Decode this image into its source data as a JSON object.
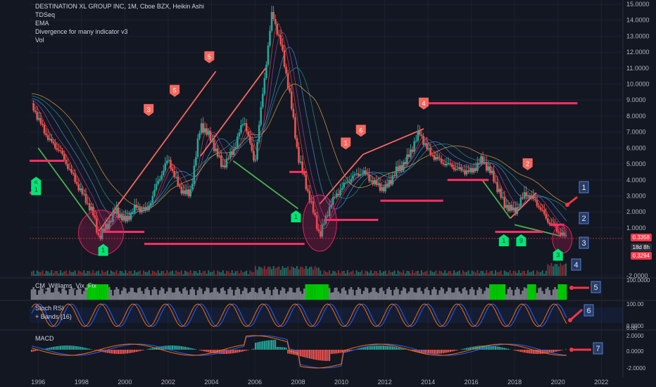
{
  "header": {
    "title": "DESTINATION XL GROUP INC, 1M, Cboe BZX, Heikin Ashi",
    "indicators": [
      "TDSeq",
      "EMA",
      "Divergence for many indicator v3",
      "Vol"
    ]
  },
  "panes": {
    "cm_label": "CM_Williams_Vix_Fix",
    "stoch_label": "Stoch RSI",
    "stoch_sub": "+ Bands (16)",
    "macd_label": "MACD"
  },
  "price_tags": {
    "last": "0.3358",
    "timer": "18d 8h",
    "low": "0.3294"
  },
  "colors": {
    "bg": "#131722",
    "grid": "#1e2230",
    "up": "#26a69a",
    "down": "#ef5350",
    "callout": "#4f7fd6",
    "arrow": "#f23645"
  },
  "callouts": [
    "1",
    "2",
    "3",
    "4",
    "5",
    "6",
    "7"
  ],
  "chart_data": [
    {
      "type": "candlestick",
      "title": "DESTINATION XL GROUP INC, 1M, Cboe BZX, Heikin Ashi",
      "x_ticks": [
        "1996",
        "1998",
        "2000",
        "2002",
        "2004",
        "2006",
        "2008",
        "2010",
        "2012",
        "2014",
        "2016",
        "2018",
        "2020",
        "2022"
      ],
      "y_ticks": [
        "15.0000",
        "14.0000",
        "13.0000",
        "12.0000",
        "11.0000",
        "10.0000",
        "9.0000",
        "8.0000",
        "7.0000",
        "6.0000",
        "5.0000",
        "4.0000",
        "3.0000",
        "2.0000",
        "1.0000",
        "-2.0000"
      ],
      "x_range": [
        1995.6,
        2023.0
      ],
      "y_range": [
        -2.0,
        15.0
      ],
      "series": [
        {
          "values": [
            [
              1995.7,
              8.8
            ],
            [
              1996.0,
              7.8
            ],
            [
              1996.5,
              6.5
            ],
            [
              1997.0,
              5.8
            ],
            [
              1997.5,
              4.5
            ],
            [
              1998.0,
              3.2
            ],
            [
              1998.5,
              2.0
            ],
            [
              1998.8,
              0.4
            ],
            [
              1999.2,
              1.2
            ],
            [
              1999.6,
              2.1
            ],
            [
              2000.0,
              1.4
            ],
            [
              2000.5,
              2.3
            ],
            [
              2001.0,
              2.0
            ],
            [
              2001.5,
              3.8
            ],
            [
              2002.0,
              5.3
            ],
            [
              2002.5,
              3.5
            ],
            [
              2003.0,
              3.0
            ],
            [
              2003.5,
              7.5
            ],
            [
              2004.0,
              6.5
            ],
            [
              2004.5,
              4.8
            ],
            [
              2005.0,
              5.8
            ],
            [
              2005.5,
              7.8
            ],
            [
              2006.0,
              5.0
            ],
            [
              2006.5,
              11.0
            ],
            [
              2006.8,
              14.5
            ],
            [
              2007.2,
              12.5
            ],
            [
              2007.6,
              9.5
            ],
            [
              2008.0,
              5.5
            ],
            [
              2008.5,
              3.0
            ],
            [
              2009.0,
              0.5
            ],
            [
              2009.5,
              2.5
            ],
            [
              2010.0,
              3.5
            ],
            [
              2010.5,
              4.2
            ],
            [
              2011.0,
              4.5
            ],
            [
              2011.5,
              3.8
            ],
            [
              2012.0,
              3.4
            ],
            [
              2012.5,
              4.5
            ],
            [
              2013.0,
              5.2
            ],
            [
              2013.6,
              7.0
            ],
            [
              2014.0,
              5.8
            ],
            [
              2014.5,
              5.2
            ],
            [
              2015.0,
              4.9
            ],
            [
              2015.5,
              4.6
            ],
            [
              2016.0,
              4.5
            ],
            [
              2016.5,
              5.3
            ],
            [
              2017.0,
              4.2
            ],
            [
              2017.5,
              2.5
            ],
            [
              2018.0,
              2.0
            ],
            [
              2018.5,
              3.2
            ],
            [
              2019.0,
              2.6
            ],
            [
              2019.5,
              1.5
            ],
            [
              2020.0,
              0.8
            ],
            [
              2020.4,
              0.34
            ]
          ]
        }
      ],
      "annotations": [
        {
          "text": "5",
          "x": 2003.9,
          "y": 11.7
        },
        {
          "text": "5",
          "x": 2002.3,
          "y": 9.6
        },
        {
          "text": "3",
          "x": 2001.1,
          "y": 8.4
        },
        {
          "text": "4",
          "x": 2013.8,
          "y": 8.8
        },
        {
          "text": "6",
          "x": 2010.9,
          "y": 7.1
        },
        {
          "text": "1",
          "x": 2010.2,
          "y": 6.3
        },
        {
          "text": "2",
          "x": 2018.6,
          "y": 5.0
        },
        {
          "text": "5",
          "x": 1995.9,
          "y": 3.8
        },
        {
          "text": "1",
          "x": 1995.9,
          "y": 3.4
        },
        {
          "text": "1",
          "x": 2007.9,
          "y": 1.7
        },
        {
          "text": "1",
          "x": 1999.0,
          "y": -0.4
        },
        {
          "text": "1",
          "x": 2017.5,
          "y": 0.2
        },
        {
          "text": "9",
          "x": 2018.3,
          "y": 0.2
        },
        {
          "text": "3",
          "x": 2020.0,
          "y": -0.7
        }
      ],
      "levels": [
        {
          "y": 8.8,
          "x0": 2013.8,
          "x1": 2020.9
        },
        {
          "y": 5.2,
          "x0": 1995.6,
          "x1": 1997.2
        },
        {
          "y": 4.5,
          "x0": 2007.6,
          "x1": 2008.4
        },
        {
          "y": 4.0,
          "x0": 2014.9,
          "x1": 2016.8
        },
        {
          "y": 3.2,
          "x0": 1995.6,
          "x1": 1996.0
        },
        {
          "y": 2.7,
          "x0": 2011.8,
          "x1": 2014.7
        },
        {
          "y": 1.5,
          "x0": 2009.2,
          "x1": 2011.7
        },
        {
          "y": 1.2,
          "x0": 2019.6,
          "x1": 2020.3
        },
        {
          "y": 0.75,
          "x0": 1999.0,
          "x1": 2000.9
        },
        {
          "y": 0.75,
          "x0": 2017.1,
          "x1": 2019.3
        },
        {
          "y": 0.0,
          "x0": 2000.9,
          "x1": 2008.3
        }
      ]
    }
  ]
}
